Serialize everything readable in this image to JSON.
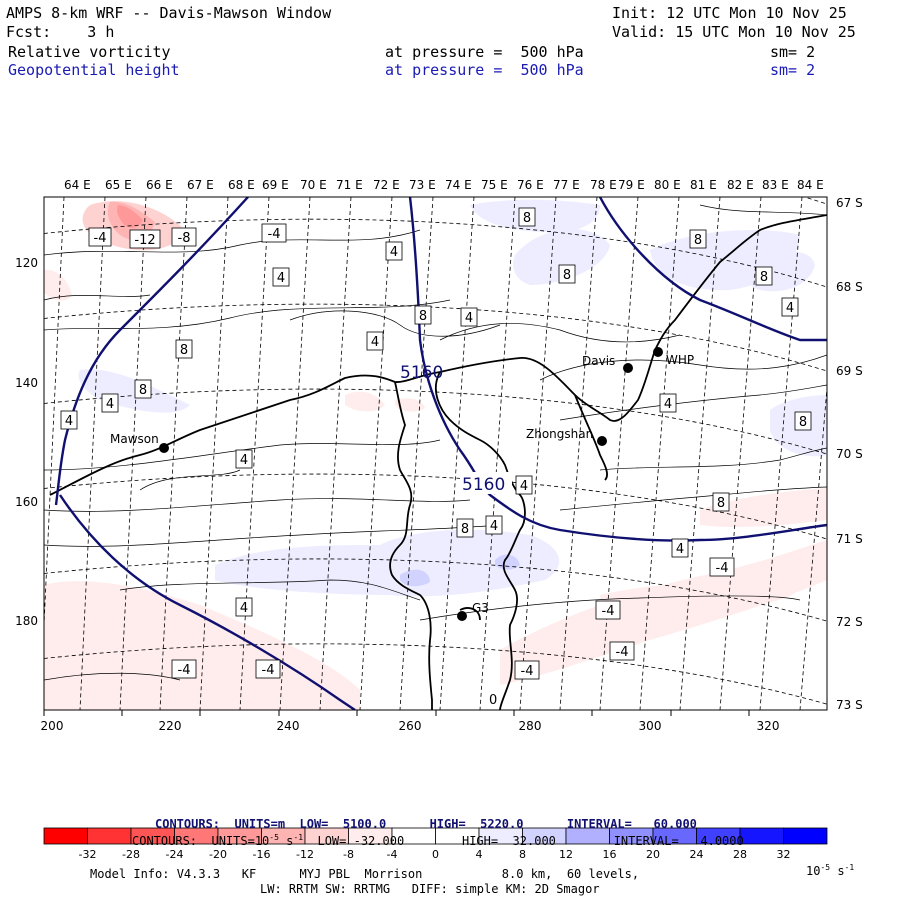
{
  "header": {
    "title": "AMPS 8-km WRF -- Davis-Mawson Window",
    "init": "Init: 12 UTC Mon 10 Nov 25",
    "fcst": "Fcst:    3 h",
    "valid": "Valid: 15 UTC Mon 10 Nov 25",
    "field1": {
      "name": "Relative vorticity",
      "level": "at pressure =  500 hPa",
      "sm": "sm= 2"
    },
    "field2": {
      "name": "Geopotential height",
      "level": "at pressure =  500 hPa",
      "sm": "sm= 2"
    }
  },
  "map": {
    "lon_labels": [
      "64 E",
      "65 E",
      "66 E",
      "67 E",
      "68 E",
      "69 E",
      "70 E",
      "71 E",
      "72 E",
      "73 E",
      "74 E",
      "75 E",
      "76 E",
      "77 E",
      "78 E",
      "79 E",
      "80 E",
      "81 E",
      "82 E",
      "83 E",
      "84 E"
    ],
    "lat_labels": [
      "67 S",
      "68 S",
      "69 S",
      "70 S",
      "71 S",
      "72 S",
      "73 S"
    ],
    "x_ticks": [
      "200",
      "220",
      "240",
      "260",
      "280",
      "300",
      "320"
    ],
    "y_ticks": [
      "120",
      "140",
      "160",
      "180"
    ],
    "stations": [
      {
        "name": "Mawson"
      },
      {
        "name": "Davis"
      },
      {
        "name": "WHP"
      },
      {
        "name": "Zhongshan"
      },
      {
        "name": "G3"
      }
    ],
    "height_labels": [
      "5160",
      "5160"
    ],
    "vort_labels": [
      "-4",
      "-12",
      "-8",
      "-4",
      "4",
      "4",
      "8",
      "8",
      "8",
      "8",
      "8",
      "4",
      "4",
      "4",
      "8",
      "8",
      "4",
      "4",
      "4",
      "4",
      "8",
      "8",
      "8",
      "4",
      "4",
      "-4",
      "4",
      "-4",
      "-4",
      "-4",
      "-4",
      "-4",
      "-4",
      "0"
    ]
  },
  "footer": {
    "height_contours": {
      "label": "CONTOURS:  UNITS=m",
      "low": "LOW=  5100.0",
      "high": "HIGH=  5220.0",
      "interval": "INTERVAL=   60.000"
    },
    "vort_contours": {
      "label": "CONTOURS:  UNITS=10",
      "exp": "-5",
      "unit": " s",
      "uexp": "-1",
      "low": "LOW= -32.000",
      "high": "HIGH=  32.000",
      "interval": "INTERVAL=   4.0000"
    },
    "colorbar": {
      "labels": [
        "-32",
        "-28",
        "-24",
        "-20",
        "-16",
        "-12",
        "-8",
        "-4",
        "0",
        "4",
        "8",
        "12",
        "16",
        "20",
        "24",
        "28",
        "32"
      ],
      "unit": "10",
      "unit_exp": "-5",
      "unit_suffix": " s",
      "unit_suffix_exp": "-1",
      "colors": [
        "#ff0000",
        "#ff3333",
        "#ff5555",
        "#ff7777",
        "#ff9999",
        "#ffb4b4",
        "#ffd2d2",
        "#ffeded",
        "#ffffff",
        "#ffffff",
        "#ededff",
        "#d2d2ff",
        "#b0b0ff",
        "#9090ff",
        "#6868ff",
        "#4040ff",
        "#1515ff",
        "#0000ff"
      ]
    },
    "model_info": "Model Info: V4.3.3   KF      MYJ PBL  Morrison           8.0 km,  60 levels,",
    "model_info2": "LW: RRTM SW: RRTMG   DIFF: simple KM: 2D Smagor"
  }
}
